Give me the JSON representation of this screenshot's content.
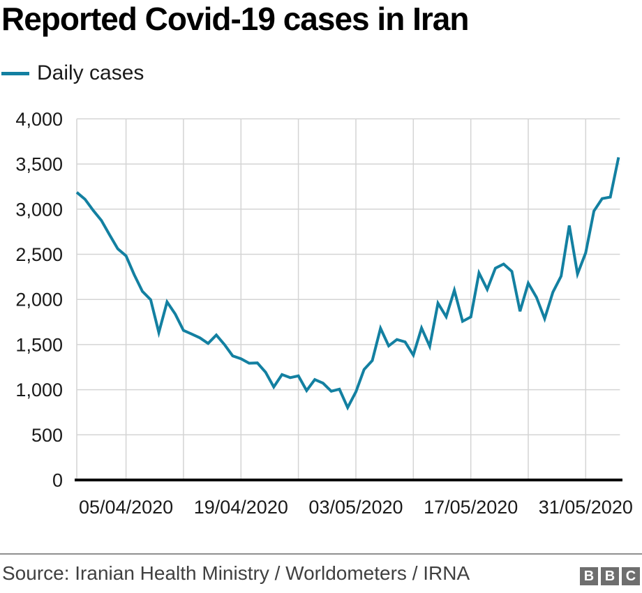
{
  "title": "Reported Covid-19 cases in Iran",
  "legend": {
    "label": "Daily cases",
    "color": "#1380A1"
  },
  "footer": {
    "source": "Source: Iranian Health Ministry / Worldometers / IRNA",
    "logo_letters": [
      "B",
      "B",
      "C"
    ]
  },
  "chart_data": {
    "type": "line",
    "title": "Reported Covid-19 cases in Iran",
    "xlabel": "",
    "ylabel": "",
    "ylim": [
      0,
      4000
    ],
    "grid": true,
    "legend_position": "top-left",
    "x": [
      "30/03/2020",
      "31/03/2020",
      "01/04/2020",
      "02/04/2020",
      "03/04/2020",
      "04/04/2020",
      "05/04/2020",
      "06/04/2020",
      "07/04/2020",
      "08/04/2020",
      "09/04/2020",
      "10/04/2020",
      "11/04/2020",
      "12/04/2020",
      "13/04/2020",
      "14/04/2020",
      "15/04/2020",
      "16/04/2020",
      "17/04/2020",
      "18/04/2020",
      "19/04/2020",
      "20/04/2020",
      "21/04/2020",
      "22/04/2020",
      "23/04/2020",
      "24/04/2020",
      "25/04/2020",
      "26/04/2020",
      "27/04/2020",
      "28/04/2020",
      "29/04/2020",
      "30/04/2020",
      "01/05/2020",
      "02/05/2020",
      "03/05/2020",
      "04/05/2020",
      "05/05/2020",
      "06/05/2020",
      "07/05/2020",
      "08/05/2020",
      "09/05/2020",
      "10/05/2020",
      "11/05/2020",
      "12/05/2020",
      "13/05/2020",
      "14/05/2020",
      "15/05/2020",
      "16/05/2020",
      "17/05/2020",
      "18/05/2020",
      "19/05/2020",
      "20/05/2020",
      "21/05/2020",
      "22/05/2020",
      "23/05/2020",
      "24/05/2020",
      "25/05/2020",
      "26/05/2020",
      "27/05/2020",
      "28/05/2020",
      "29/05/2020",
      "30/05/2020",
      "31/05/2020",
      "01/06/2020",
      "02/06/2020",
      "03/06/2020",
      "04/06/2020"
    ],
    "series": [
      {
        "name": "Daily cases",
        "color": "#1380A1",
        "values": [
          3186,
          3110,
          2987,
          2875,
          2715,
          2560,
          2483,
          2274,
          2089,
          1997,
          1634,
          1972,
          1837,
          1657,
          1617,
          1574,
          1512,
          1606,
          1499,
          1374,
          1343,
          1294,
          1297,
          1194,
          1030,
          1168,
          1134,
          1153,
          991,
          1112,
          1073,
          983,
          1006,
          802,
          976,
          1223,
          1323,
          1680,
          1485,
          1556,
          1529,
          1383,
          1683,
          1481,
          1958,
          1808,
          2102,
          1757,
          1806,
          2294,
          2111,
          2346,
          2392,
          2311,
          1869,
          2180,
          2023,
          1787,
          2080,
          2258,
          2819,
          2282,
          2516,
          2979,
          3117,
          3134,
          3574
        ]
      }
    ],
    "x_tick_labels": [
      "05/04/2020",
      "19/04/2020",
      "03/05/2020",
      "17/05/2020",
      "31/05/2020"
    ],
    "x_tick_indices": [
      6,
      20,
      34,
      48,
      62
    ],
    "x_gridline_indices": [
      6,
      13,
      20,
      27,
      34,
      41,
      48,
      55,
      62
    ],
    "y_ticks": [
      {
        "value": 0,
        "label": "0"
      },
      {
        "value": 500,
        "label": "500"
      },
      {
        "value": 1000,
        "label": "1,000"
      },
      {
        "value": 1500,
        "label": "1,500"
      },
      {
        "value": 2000,
        "label": "2,000"
      },
      {
        "value": 2500,
        "label": "2,500"
      },
      {
        "value": 3000,
        "label": "3,000"
      },
      {
        "value": 3500,
        "label": "3,500"
      },
      {
        "value": 4000,
        "label": "4,000"
      }
    ],
    "colors": {
      "grid": "#d4d4d4",
      "axis": "#000000",
      "tick_text": "#1a1a1a"
    }
  }
}
